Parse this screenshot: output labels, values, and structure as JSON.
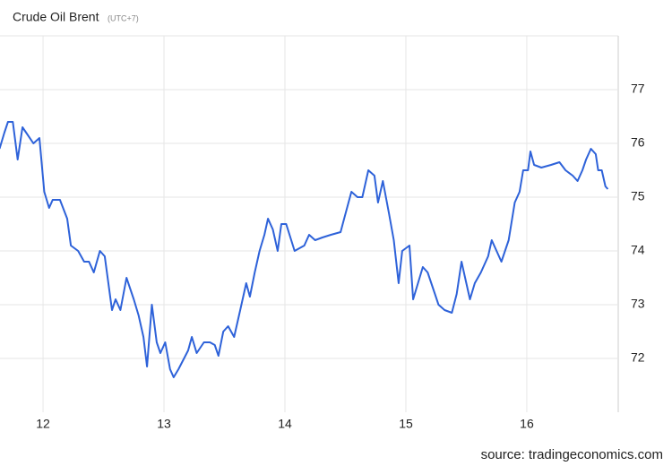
{
  "chart_data": {
    "type": "line",
    "title": "Crude Oil Brent",
    "subtitle": "(UTC+7)",
    "source": "source: tradingeconomics.com",
    "x": [
      11.64,
      11.68,
      11.71,
      11.75,
      11.79,
      11.83,
      11.86,
      11.92,
      11.97,
      12.01,
      12.05,
      12.08,
      12.14,
      12.2,
      12.23,
      12.29,
      12.34,
      12.38,
      12.42,
      12.47,
      12.51,
      12.57,
      12.6,
      12.64,
      12.69,
      12.75,
      12.79,
      12.83,
      12.86,
      12.9,
      12.94,
      12.97,
      13.01,
      13.05,
      13.08,
      13.12,
      13.2,
      13.23,
      13.27,
      13.33,
      13.38,
      13.42,
      13.45,
      13.49,
      13.53,
      13.58,
      13.63,
      13.68,
      13.71,
      13.75,
      13.79,
      13.83,
      13.86,
      13.9,
      13.94,
      13.97,
      14.01,
      14.08,
      14.16,
      14.2,
      14.25,
      14.31,
      14.38,
      14.46,
      14.49,
      14.55,
      14.6,
      14.64,
      14.69,
      14.74,
      14.77,
      14.81,
      14.86,
      14.9,
      14.94,
      14.97,
      15.03,
      15.06,
      15.1,
      15.14,
      15.18,
      15.24,
      15.27,
      15.32,
      15.38,
      15.42,
      15.46,
      15.49,
      15.53,
      15.57,
      15.62,
      15.68,
      15.71,
      15.75,
      15.79,
      15.85,
      15.9,
      15.94,
      15.97,
      16.01,
      16.03,
      16.06,
      16.12,
      16.2,
      16.27,
      16.32,
      16.38,
      16.42,
      16.46,
      16.49,
      16.53,
      16.57,
      16.59,
      16.62,
      16.65,
      16.67
    ],
    "series": [
      {
        "name": "Crude Oil Brent",
        "color": "#2e62d9",
        "values": [
          75.9,
          76.2,
          76.4,
          76.4,
          75.7,
          76.3,
          76.2,
          76.0,
          76.1,
          75.1,
          74.8,
          74.95,
          74.95,
          74.6,
          74.1,
          74.0,
          73.8,
          73.8,
          73.6,
          74.0,
          73.9,
          72.9,
          73.1,
          72.9,
          73.5,
          73.1,
          72.8,
          72.4,
          71.85,
          73.0,
          72.3,
          72.1,
          72.3,
          71.8,
          71.65,
          71.8,
          72.15,
          72.4,
          72.1,
          72.3,
          72.3,
          72.25,
          72.05,
          72.5,
          72.6,
          72.4,
          72.9,
          73.4,
          73.15,
          73.6,
          74.0,
          74.3,
          74.6,
          74.4,
          74.0,
          74.5,
          74.5,
          74.0,
          74.1,
          74.3,
          74.2,
          74.25,
          74.3,
          74.35,
          74.6,
          75.1,
          75.0,
          75.0,
          75.5,
          75.4,
          74.9,
          75.3,
          74.7,
          74.2,
          73.4,
          74.0,
          74.1,
          73.1,
          73.4,
          73.7,
          73.6,
          73.2,
          73.0,
          72.9,
          72.85,
          73.2,
          73.8,
          73.5,
          73.1,
          73.4,
          73.6,
          73.9,
          74.2,
          74.0,
          73.8,
          74.2,
          74.9,
          75.1,
          75.5,
          75.5,
          75.85,
          75.6,
          75.55,
          75.6,
          75.65,
          75.5,
          75.4,
          75.3,
          75.5,
          75.7,
          75.9,
          75.8,
          75.5,
          75.5,
          75.2,
          75.15
        ]
      }
    ],
    "xlim": [
      11.644,
      16.756
    ],
    "xticks": [
      12,
      13,
      14,
      15,
      16
    ],
    "ylim": [
      71,
      78
    ],
    "yticks": [
      72,
      73,
      74,
      75,
      76,
      77
    ],
    "grid": true
  }
}
